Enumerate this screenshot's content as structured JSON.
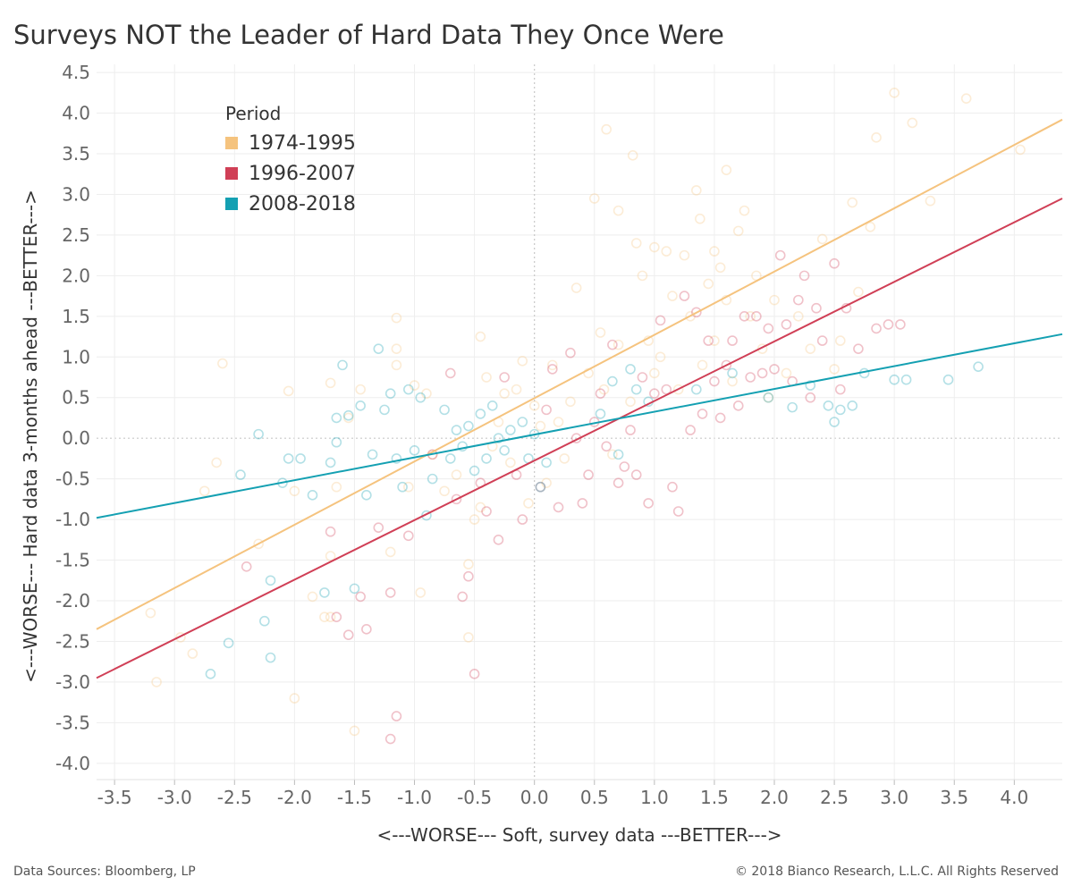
{
  "chart_data": {
    "type": "scatter",
    "title": "Surveys NOT the Leader of Hard Data They Once Were",
    "xlabel": "<---WORSE--- Soft, survey data ---BETTER--->",
    "ylabel": "<---WORSE--- Hard data 3-months ahead ---BETTER--->",
    "xlim": [
      -3.65,
      4.4
    ],
    "ylim": [
      -4.2,
      4.6
    ],
    "x_ticks": [
      "-3.5",
      "-3.0",
      "-2.5",
      "-2.0",
      "-1.5",
      "-1.0",
      "-0.5",
      "0.0",
      "0.5",
      "1.0",
      "1.5",
      "2.0",
      "2.5",
      "3.0",
      "3.5",
      "4.0"
    ],
    "y_ticks": [
      "4.5",
      "4.0",
      "3.5",
      "3.0",
      "2.5",
      "2.0",
      "1.5",
      "1.0",
      "0.5",
      "0.0",
      "-0.5",
      "-1.0",
      "-1.5",
      "-2.0",
      "-2.5",
      "-3.0",
      "-3.5",
      "-4.0"
    ],
    "grid": true,
    "legend": {
      "title": "Period",
      "placement": "top-left",
      "items": [
        {
          "label": "1974-1995",
          "color": "#F5C37E"
        },
        {
          "label": "1996-2007",
          "color": "#D03F56"
        },
        {
          "label": "2008-2018",
          "color": "#14A0B2"
        }
      ]
    },
    "trendlines": [
      {
        "series": "1974-1995",
        "color": "#F5C37E",
        "x": [
          -3.65,
          4.4
        ],
        "y": [
          -2.35,
          3.92
        ]
      },
      {
        "series": "1996-2007",
        "color": "#D03F56",
        "x": [
          -3.65,
          4.4
        ],
        "y": [
          -2.95,
          2.95
        ]
      },
      {
        "series": "2008-2018",
        "color": "#14A0B2",
        "x": [
          -3.65,
          4.4
        ],
        "y": [
          -0.98,
          1.28
        ]
      }
    ],
    "series": [
      {
        "name": "1974-1995",
        "color": "#F5C37E",
        "points": [
          [
            -3.2,
            -2.15
          ],
          [
            -3.15,
            -3.0
          ],
          [
            -2.95,
            -2.45
          ],
          [
            -2.85,
            -2.65
          ],
          [
            -2.75,
            -0.65
          ],
          [
            -2.6,
            0.92
          ],
          [
            -2.65,
            -0.3
          ],
          [
            -2.3,
            -1.3
          ],
          [
            -2.05,
            0.58
          ],
          [
            -2.0,
            -3.2
          ],
          [
            -2.0,
            -0.65
          ],
          [
            -1.85,
            -1.95
          ],
          [
            -1.75,
            -2.2
          ],
          [
            -1.7,
            -2.2
          ],
          [
            -1.7,
            -1.45
          ],
          [
            -1.7,
            0.68
          ],
          [
            -1.65,
            -0.6
          ],
          [
            -1.55,
            0.25
          ],
          [
            -1.5,
            -3.6
          ],
          [
            -1.45,
            0.6
          ],
          [
            -1.2,
            -1.4
          ],
          [
            -1.15,
            0.9
          ],
          [
            -1.15,
            1.1
          ],
          [
            -1.15,
            1.48
          ],
          [
            -1.0,
            0.65
          ],
          [
            -1.05,
            -0.6
          ],
          [
            -0.95,
            -1.9
          ],
          [
            -0.9,
            0.55
          ],
          [
            -0.85,
            -0.2
          ],
          [
            -0.75,
            -0.65
          ],
          [
            -0.65,
            -0.45
          ],
          [
            -0.55,
            -1.55
          ],
          [
            -0.55,
            -2.45
          ],
          [
            -0.5,
            -1.0
          ],
          [
            -0.45,
            1.25
          ],
          [
            -0.45,
            -0.85
          ],
          [
            -0.4,
            0.75
          ],
          [
            -0.35,
            -0.1
          ],
          [
            -0.3,
            0.2
          ],
          [
            -0.25,
            0.55
          ],
          [
            -0.2,
            -0.3
          ],
          [
            -0.15,
            0.6
          ],
          [
            -0.1,
            0.95
          ],
          [
            -0.05,
            -0.8
          ],
          [
            0.0,
            0.4
          ],
          [
            0.05,
            0.15
          ],
          [
            0.1,
            -0.55
          ],
          [
            0.15,
            0.9
          ],
          [
            0.2,
            0.2
          ],
          [
            0.25,
            -0.25
          ],
          [
            0.3,
            0.45
          ],
          [
            0.35,
            1.85
          ],
          [
            0.45,
            0.8
          ],
          [
            0.5,
            2.95
          ],
          [
            0.55,
            1.3
          ],
          [
            0.58,
            0.6
          ],
          [
            0.6,
            3.8
          ],
          [
            0.65,
            -0.2
          ],
          [
            0.7,
            1.15
          ],
          [
            0.7,
            2.8
          ],
          [
            0.8,
            0.45
          ],
          [
            0.82,
            3.48
          ],
          [
            0.85,
            2.4
          ],
          [
            0.9,
            2.0
          ],
          [
            0.95,
            1.2
          ],
          [
            1.0,
            0.8
          ],
          [
            1.0,
            2.35
          ],
          [
            1.05,
            1.0
          ],
          [
            1.1,
            2.3
          ],
          [
            1.15,
            1.75
          ],
          [
            1.2,
            0.6
          ],
          [
            1.25,
            2.25
          ],
          [
            1.3,
            1.5
          ],
          [
            1.35,
            3.05
          ],
          [
            1.38,
            2.7
          ],
          [
            1.4,
            0.9
          ],
          [
            1.45,
            1.9
          ],
          [
            1.5,
            2.3
          ],
          [
            1.5,
            1.2
          ],
          [
            1.55,
            2.1
          ],
          [
            1.6,
            3.3
          ],
          [
            1.6,
            1.7
          ],
          [
            1.65,
            0.7
          ],
          [
            1.7,
            2.55
          ],
          [
            1.75,
            2.8
          ],
          [
            1.8,
            1.5
          ],
          [
            1.85,
            2.0
          ],
          [
            1.9,
            1.1
          ],
          [
            1.95,
            0.5
          ],
          [
            2.0,
            1.7
          ],
          [
            2.1,
            0.8
          ],
          [
            2.2,
            1.5
          ],
          [
            2.3,
            1.1
          ],
          [
            2.4,
            2.45
          ],
          [
            2.5,
            0.85
          ],
          [
            2.55,
            1.2
          ],
          [
            2.65,
            2.9
          ],
          [
            2.7,
            1.8
          ],
          [
            2.8,
            2.6
          ],
          [
            2.85,
            3.7
          ],
          [
            3.0,
            4.25
          ],
          [
            3.15,
            3.88
          ],
          [
            3.3,
            2.92
          ],
          [
            3.6,
            4.18
          ],
          [
            4.05,
            3.55
          ]
        ]
      },
      {
        "name": "1996-2007",
        "color": "#D03F56",
        "points": [
          [
            -2.4,
            -1.58
          ],
          [
            -1.7,
            -1.15
          ],
          [
            -1.65,
            -2.2
          ],
          [
            -1.55,
            -2.42
          ],
          [
            -1.45,
            -1.95
          ],
          [
            -1.4,
            -2.35
          ],
          [
            -1.3,
            -1.1
          ],
          [
            -1.2,
            -3.7
          ],
          [
            -1.15,
            -3.42
          ],
          [
            -1.2,
            -1.9
          ],
          [
            -1.05,
            -1.2
          ],
          [
            -0.85,
            -0.2
          ],
          [
            -0.7,
            0.8
          ],
          [
            -0.65,
            -0.75
          ],
          [
            -0.6,
            -1.95
          ],
          [
            -0.55,
            -1.7
          ],
          [
            -0.5,
            -2.9
          ],
          [
            -0.45,
            -0.55
          ],
          [
            -0.4,
            -0.9
          ],
          [
            -0.3,
            -1.25
          ],
          [
            -0.25,
            0.75
          ],
          [
            -0.15,
            -0.45
          ],
          [
            -0.1,
            -1.0
          ],
          [
            0.05,
            -0.6
          ],
          [
            0.1,
            0.35
          ],
          [
            0.15,
            0.85
          ],
          [
            0.2,
            -0.85
          ],
          [
            0.3,
            1.05
          ],
          [
            0.35,
            0.0
          ],
          [
            0.4,
            -0.8
          ],
          [
            0.45,
            -0.45
          ],
          [
            0.5,
            0.2
          ],
          [
            0.55,
            0.55
          ],
          [
            0.6,
            -0.1
          ],
          [
            0.65,
            1.15
          ],
          [
            0.7,
            -0.55
          ],
          [
            0.75,
            -0.35
          ],
          [
            0.8,
            0.1
          ],
          [
            0.85,
            -0.45
          ],
          [
            0.9,
            0.75
          ],
          [
            0.95,
            -0.8
          ],
          [
            1.0,
            0.55
          ],
          [
            1.05,
            1.45
          ],
          [
            1.1,
            0.6
          ],
          [
            1.15,
            -0.6
          ],
          [
            1.2,
            -0.9
          ],
          [
            1.25,
            1.75
          ],
          [
            1.3,
            0.1
          ],
          [
            1.35,
            1.55
          ],
          [
            1.4,
            0.3
          ],
          [
            1.45,
            1.2
          ],
          [
            1.5,
            0.7
          ],
          [
            1.55,
            0.25
          ],
          [
            1.6,
            0.9
          ],
          [
            1.65,
            1.2
          ],
          [
            1.7,
            0.4
          ],
          [
            1.75,
            1.5
          ],
          [
            1.8,
            0.75
          ],
          [
            1.85,
            1.5
          ],
          [
            1.9,
            0.8
          ],
          [
            1.95,
            1.35
          ],
          [
            2.0,
            0.85
          ],
          [
            2.05,
            2.25
          ],
          [
            2.1,
            1.4
          ],
          [
            2.15,
            0.7
          ],
          [
            2.2,
            1.7
          ],
          [
            2.25,
            2.0
          ],
          [
            2.3,
            0.5
          ],
          [
            2.35,
            1.6
          ],
          [
            2.4,
            1.2
          ],
          [
            2.5,
            2.15
          ],
          [
            2.55,
            0.6
          ],
          [
            2.6,
            1.6
          ],
          [
            2.7,
            1.1
          ],
          [
            2.85,
            1.35
          ],
          [
            2.95,
            1.4
          ],
          [
            3.05,
            1.4
          ]
        ]
      },
      {
        "name": "2008-2018",
        "color": "#14A0B2",
        "points": [
          [
            -2.7,
            -2.9
          ],
          [
            -2.55,
            -2.52
          ],
          [
            -2.45,
            -0.45
          ],
          [
            -2.3,
            0.05
          ],
          [
            -2.25,
            -2.25
          ],
          [
            -2.2,
            -1.75
          ],
          [
            -2.2,
            -2.7
          ],
          [
            -2.1,
            -0.55
          ],
          [
            -2.05,
            -0.25
          ],
          [
            -1.95,
            -0.25
          ],
          [
            -1.85,
            -0.7
          ],
          [
            -1.75,
            -1.9
          ],
          [
            -1.7,
            -0.3
          ],
          [
            -1.65,
            0.25
          ],
          [
            -1.65,
            -0.05
          ],
          [
            -1.6,
            0.9
          ],
          [
            -1.55,
            0.28
          ],
          [
            -1.5,
            -1.85
          ],
          [
            -1.45,
            0.4
          ],
          [
            -1.4,
            -0.7
          ],
          [
            -1.35,
            -0.2
          ],
          [
            -1.3,
            1.1
          ],
          [
            -1.25,
            0.35
          ],
          [
            -1.2,
            0.55
          ],
          [
            -1.15,
            -0.25
          ],
          [
            -1.1,
            -0.6
          ],
          [
            -1.05,
            0.6
          ],
          [
            -1.0,
            -0.15
          ],
          [
            -0.95,
            0.5
          ],
          [
            -0.9,
            -0.95
          ],
          [
            -0.85,
            -0.5
          ],
          [
            -0.75,
            0.35
          ],
          [
            -0.7,
            -0.25
          ],
          [
            -0.65,
            0.1
          ],
          [
            -0.6,
            -0.1
          ],
          [
            -0.55,
            0.15
          ],
          [
            -0.5,
            -0.4
          ],
          [
            -0.45,
            0.3
          ],
          [
            -0.4,
            -0.25
          ],
          [
            -0.35,
            0.4
          ],
          [
            -0.3,
            0.0
          ],
          [
            -0.25,
            -0.15
          ],
          [
            -0.2,
            0.1
          ],
          [
            -0.1,
            0.2
          ],
          [
            -0.05,
            -0.25
          ],
          [
            0.0,
            0.05
          ],
          [
            0.05,
            -0.6
          ],
          [
            0.1,
            -0.3
          ],
          [
            0.55,
            0.3
          ],
          [
            0.65,
            0.7
          ],
          [
            0.7,
            -0.2
          ],
          [
            0.8,
            0.85
          ],
          [
            0.85,
            0.6
          ],
          [
            0.95,
            0.45
          ],
          [
            1.35,
            0.6
          ],
          [
            1.65,
            0.8
          ],
          [
            1.95,
            0.5
          ],
          [
            2.15,
            0.38
          ],
          [
            2.3,
            0.65
          ],
          [
            2.45,
            0.4
          ],
          [
            2.5,
            0.2
          ],
          [
            2.55,
            0.35
          ],
          [
            2.65,
            0.4
          ],
          [
            2.75,
            0.8
          ],
          [
            3.0,
            0.72
          ],
          [
            3.1,
            0.72
          ],
          [
            3.45,
            0.72
          ],
          [
            3.7,
            0.88
          ]
        ]
      }
    ]
  },
  "footer": {
    "source": "Data Sources: Bloomberg, LP",
    "copyright": "© 2018 Bianco Research, L.L.C. All Rights Reserved"
  }
}
